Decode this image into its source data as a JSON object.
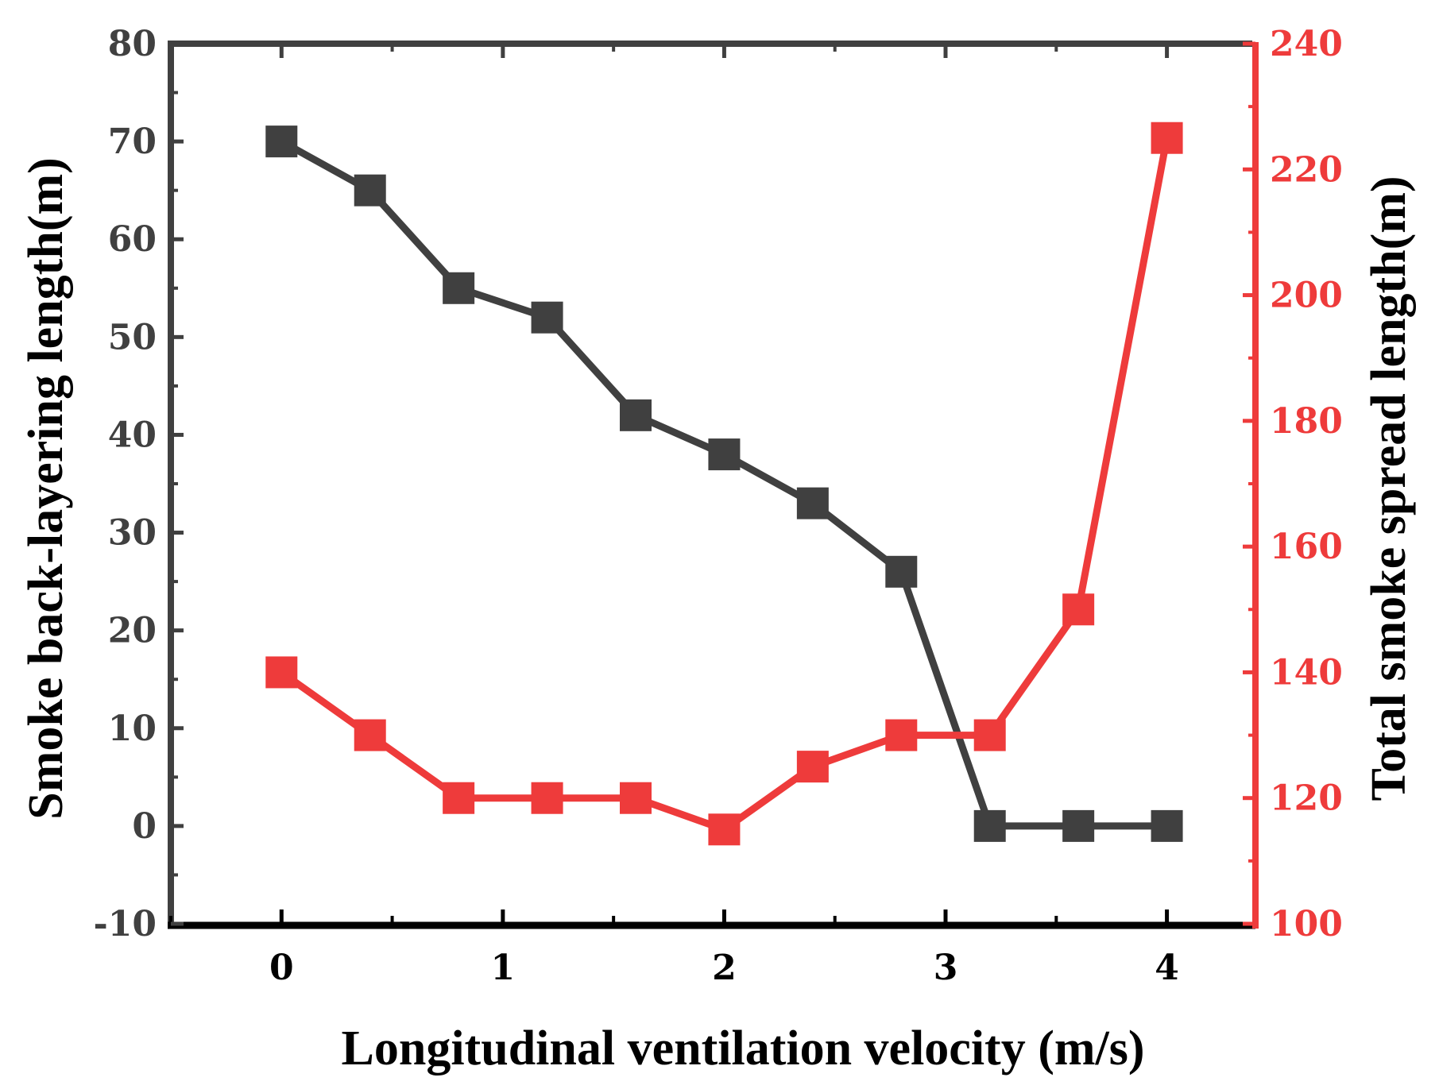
{
  "chart_data": {
    "type": "line",
    "title": "",
    "xlabel": "Longitudinal ventilation velocity (m/s)",
    "ylabel_left": "Smoke back-layering length(m)",
    "ylabel_right": "Total smoke spread length(m)",
    "xlim": [
      -0.5,
      4.4
    ],
    "ylim_left": [
      -10,
      80
    ],
    "ylim_right": [
      100,
      240
    ],
    "x_ticks": [
      "0",
      "1",
      "2",
      "3",
      "4"
    ],
    "y_left_ticks": [
      "-10",
      "0",
      "10",
      "20",
      "30",
      "40",
      "50",
      "60",
      "70",
      "80"
    ],
    "y_right_ticks": [
      "100",
      "120",
      "140",
      "160",
      "180",
      "200",
      "220",
      "240"
    ],
    "grid": false,
    "series": [
      {
        "name": "Smoke back-layering length",
        "axis": "left",
        "color": "#404040",
        "marker": "square",
        "x": [
          0,
          0.4,
          0.8,
          1.2,
          1.6,
          2.0,
          2.4,
          2.8,
          3.2,
          3.6,
          4.0
        ],
        "values": [
          70,
          65,
          55,
          52,
          42,
          38,
          33,
          26,
          0,
          0,
          0
        ]
      },
      {
        "name": "Total smoke spread length",
        "axis": "right",
        "color": "#ee3b3b",
        "marker": "square",
        "x": [
          0,
          0.4,
          0.8,
          1.2,
          1.6,
          2.0,
          2.4,
          2.8,
          3.2,
          3.6,
          4.0
        ],
        "values": [
          140,
          130,
          120,
          120,
          120,
          115,
          125,
          130,
          130,
          150,
          225
        ]
      }
    ]
  }
}
